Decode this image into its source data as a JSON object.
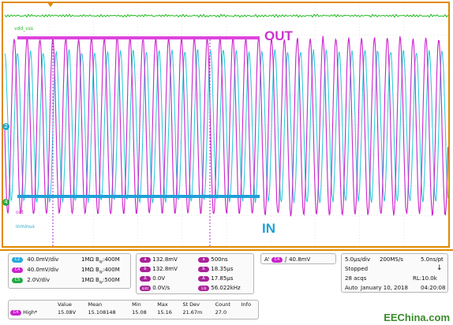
{
  "scope": {
    "channels_on_screen": {
      "vdd_label": "vdd_vss",
      "out_label": "out",
      "in_label": "inminus"
    },
    "markers": {
      "ch2": "2",
      "ch4": "4"
    },
    "annotations": {
      "out": "OUT",
      "in": "IN"
    },
    "colors": {
      "frame": "#e08a00",
      "out_trace": "#cc22cc",
      "in_trace": "#22c8d8",
      "vdd_trace": "#22bb22",
      "out_bar": "#dd44dd",
      "in_bar": "#1fa0d8"
    }
  },
  "channel_panel": {
    "rows": [
      {
        "chip": "C2",
        "chip_color": "#22aadd",
        "scale": "40.0mV/div",
        "coupling": "1MΩ",
        "bw_symbol": "B",
        "bw_sub": "W",
        "bw": ":400M"
      },
      {
        "chip": "C4",
        "chip_color": "#cc22cc",
        "scale": "40.0mV/div",
        "coupling": "1MΩ",
        "bw_symbol": "B",
        "bw_sub": "W",
        "bw": ":400M"
      },
      {
        "chip": "C5",
        "chip_color": "#22aa44",
        "scale": "2.0V/div",
        "coupling": "1MΩ",
        "bw_symbol": "B",
        "bw_sub": "W",
        "bw": ":500M"
      }
    ]
  },
  "cursor_panel": {
    "left": [
      {
        "chip": "a",
        "value": "132.8mV"
      },
      {
        "chip": "b",
        "value": "132.8mV"
      },
      {
        "chip": "Δ",
        "value": "0.0V"
      },
      {
        "chip": "Δ/Δt",
        "value": "0.0V/s"
      }
    ],
    "right": [
      {
        "chip": "a",
        "value": "500ns"
      },
      {
        "chip": "b",
        "value": "18.35μs"
      },
      {
        "chip": "Δ",
        "value": "17.85μs"
      },
      {
        "chip": "1/Δ",
        "value": "56.022kHz"
      }
    ]
  },
  "trigger_panel": {
    "prefix": "A'",
    "chip": "C4",
    "slope": "∫",
    "level": "40.8mV"
  },
  "acq_panel": {
    "timebase": "5.0μs/div",
    "sample_rate": "200MS/s",
    "resolution": "5.0ns/pt",
    "state": "Stopped",
    "acqs": "28 acqs",
    "record_length": "RL:10.0k",
    "mode": "Auto",
    "date": "January 10, 2018",
    "time": "04:20:08"
  },
  "stats": {
    "headers": [
      "",
      "Value",
      "Mean",
      "Min",
      "Max",
      "St Dev",
      "Count",
      "Info"
    ],
    "row": {
      "chip": "C4",
      "label": "High*",
      "value": "15.08V",
      "mean": "15.108148",
      "min": "15.08",
      "max": "15.16",
      "stdev": "21.67m",
      "count": "27.0",
      "info": ""
    }
  },
  "watermark": "EEChina.com"
}
